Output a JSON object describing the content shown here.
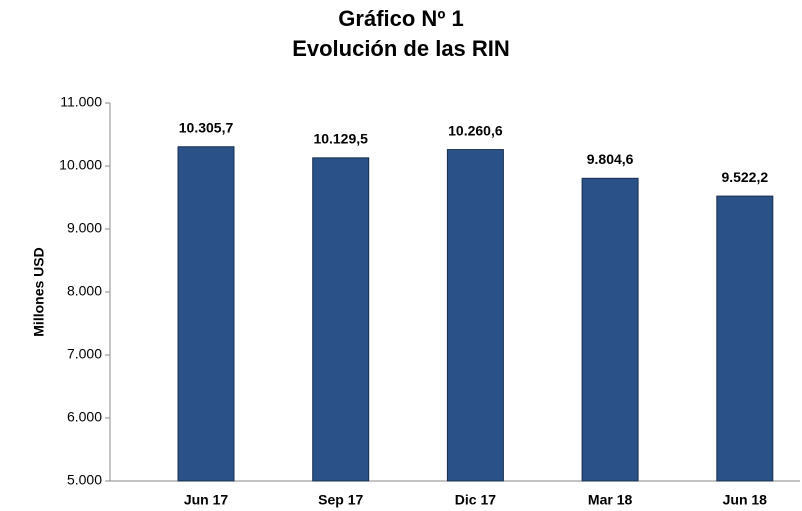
{
  "chart_data": {
    "type": "bar",
    "title": "Gráfico Nº 1",
    "subtitle": "Evolución de las RIN",
    "y_label": "Millones USD",
    "categories": [
      "Jun 17",
      "Sep 17",
      "Dic 17",
      "Mar 18",
      "Jun 18"
    ],
    "values": [
      10305.7,
      10129.5,
      10260.6,
      9804.6,
      9522.2
    ],
    "value_labels": [
      "10.305,7",
      "10.129,5",
      "10.260,6",
      "9.804,6",
      "9.522,2"
    ],
    "color": "#2a5188",
    "ylim": [
      5000,
      11000
    ],
    "yticks": [
      {
        "value": 5000,
        "label": "5.000"
      },
      {
        "value": 6000,
        "label": "6.000"
      },
      {
        "value": 7000,
        "label": "7.000"
      },
      {
        "value": 8000,
        "label": "8.000"
      },
      {
        "value": 9000,
        "label": "9.000"
      },
      {
        "value": 10000,
        "label": "10.000"
      },
      {
        "value": 11000,
        "label": "11.000"
      }
    ],
    "grid": false
  }
}
